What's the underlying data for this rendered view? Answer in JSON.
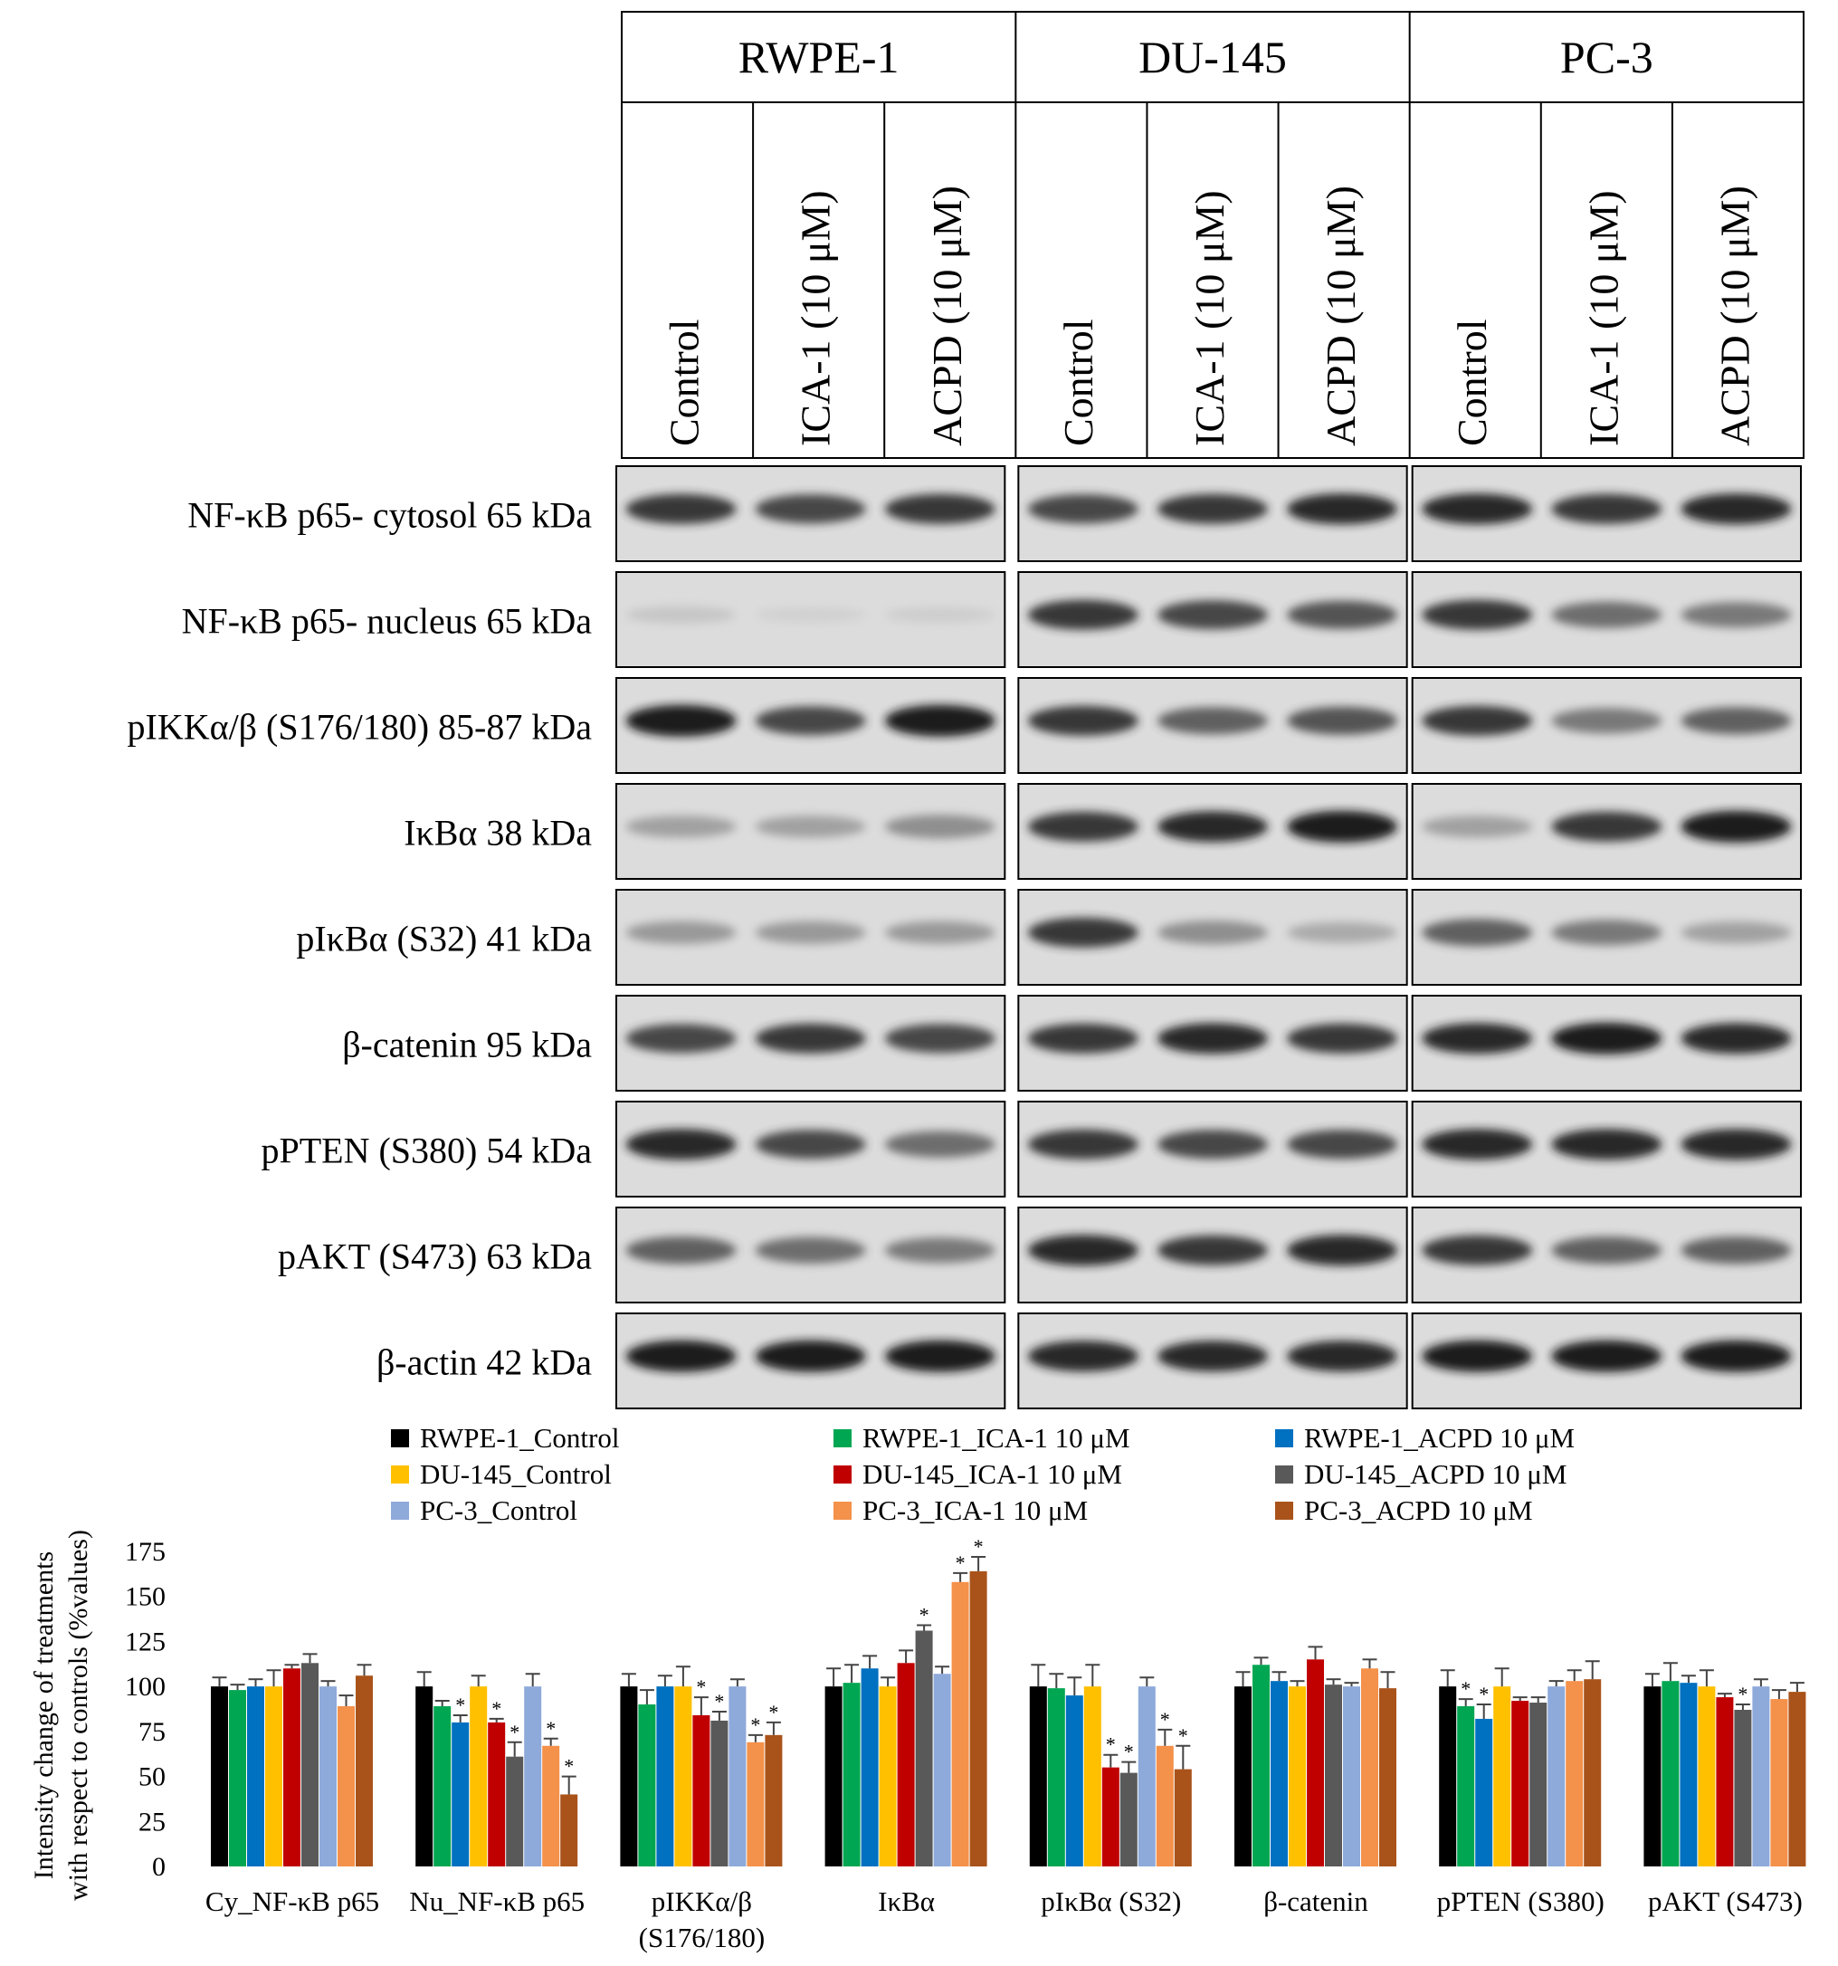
{
  "blot": {
    "cell_lines": [
      "RWPE-1",
      "DU-145",
      "PC-3"
    ],
    "treatments": [
      "Control",
      "ICA-1 (10 μM)",
      "ACPD (10 μM)"
    ],
    "rows": [
      {
        "label": "NF-κB p65- cytosol 65 kDa",
        "intensity": [
          [
            0.85,
            0.8,
            0.85
          ],
          [
            0.8,
            0.85,
            0.9
          ],
          [
            0.9,
            0.85,
            0.9
          ]
        ]
      },
      {
        "label": "NF-κB p65- nucleus 65 kDa",
        "intensity": [
          [
            0.15,
            0.05,
            0.08
          ],
          [
            0.85,
            0.8,
            0.75
          ],
          [
            0.85,
            0.65,
            0.6
          ]
        ]
      },
      {
        "label": "pIKKα/β (S176/180) 85-87 kDa",
        "intensity": [
          [
            0.95,
            0.8,
            0.95
          ],
          [
            0.85,
            0.7,
            0.75
          ],
          [
            0.85,
            0.6,
            0.7
          ]
        ]
      },
      {
        "label": "IκBα 38 kDa",
        "intensity": [
          [
            0.4,
            0.4,
            0.5
          ],
          [
            0.85,
            0.9,
            0.95
          ],
          [
            0.4,
            0.85,
            0.95
          ]
        ]
      },
      {
        "label": "pIκBα (S32) 41 kDa",
        "intensity": [
          [
            0.45,
            0.45,
            0.45
          ],
          [
            0.85,
            0.5,
            0.35
          ],
          [
            0.7,
            0.6,
            0.4
          ]
        ]
      },
      {
        "label": "β-catenin 95 kDa",
        "intensity": [
          [
            0.8,
            0.85,
            0.8
          ],
          [
            0.85,
            0.9,
            0.85
          ],
          [
            0.9,
            0.95,
            0.9
          ]
        ]
      },
      {
        "label": "pPTEN (S380) 54 kDa",
        "intensity": [
          [
            0.9,
            0.8,
            0.65
          ],
          [
            0.85,
            0.8,
            0.8
          ],
          [
            0.9,
            0.9,
            0.9
          ]
        ]
      },
      {
        "label": "pAKT (S473) 63 kDa",
        "intensity": [
          [
            0.7,
            0.65,
            0.6
          ],
          [
            0.9,
            0.85,
            0.9
          ],
          [
            0.85,
            0.7,
            0.7
          ]
        ]
      },
      {
        "label": "β-actin 42 kDa",
        "intensity": [
          [
            0.95,
            0.95,
            0.95
          ],
          [
            0.9,
            0.9,
            0.9
          ],
          [
            0.95,
            0.95,
            0.95
          ]
        ]
      }
    ]
  },
  "chart_data": {
    "type": "bar",
    "title": "",
    "xlabel": "",
    "ylabel": "Intensity change of treatments with respect to controls (%values)",
    "ylim": [
      0,
      175
    ],
    "yticks": [
      "0",
      "25",
      "50",
      "75",
      "100",
      "125",
      "150",
      "175"
    ],
    "grid": false,
    "legend_position": "top",
    "categories": [
      "Cy_NF-κB p65",
      "Nu_NF-κB p65",
      "pIKKα/β (S176/180)",
      "IκBα",
      "pIκBα (S32)",
      "β-catenin",
      "pPTEN (S380)",
      "pAKT (S473)"
    ],
    "category_label_lines": [
      [
        "Cy_NF-κB p65"
      ],
      [
        "Nu_NF-κB p65"
      ],
      [
        "pIKKα/β",
        "(S176/180)"
      ],
      [
        "IκBα"
      ],
      [
        "pIκBα (S32)"
      ],
      [
        "β-catenin"
      ],
      [
        "pPTEN (S380)"
      ],
      [
        "pAKT (S473)"
      ]
    ],
    "series": [
      {
        "name": "RWPE-1_Control",
        "color": "#000000",
        "values": [
          100,
          100,
          100,
          100,
          100,
          100,
          100,
          100
        ],
        "errors": [
          5,
          8,
          7,
          10,
          12,
          8,
          9,
          7
        ],
        "significant": [
          false,
          false,
          false,
          false,
          false,
          false,
          false,
          false
        ]
      },
      {
        "name": "RWPE-1_ICA-1 10 μM",
        "color": "#00a651",
        "values": [
          98,
          89,
          90,
          102,
          99,
          112,
          89,
          103
        ],
        "errors": [
          3,
          3,
          8,
          10,
          8,
          4,
          4,
          10
        ],
        "significant": [
          false,
          false,
          false,
          false,
          false,
          false,
          true,
          false
        ]
      },
      {
        "name": "RWPE-1_ACPD 10 μM",
        "color": "#0070c0",
        "values": [
          100,
          80,
          100,
          110,
          95,
          103,
          82,
          102
        ],
        "errors": [
          4,
          4,
          6,
          7,
          10,
          5,
          8,
          4
        ],
        "significant": [
          false,
          true,
          false,
          false,
          false,
          false,
          true,
          false
        ]
      },
      {
        "name": "DU-145_Control",
        "color": "#ffc000",
        "values": [
          100,
          100,
          100,
          100,
          100,
          100,
          100,
          100
        ],
        "errors": [
          9,
          6,
          11,
          5,
          12,
          3,
          10,
          9
        ],
        "significant": [
          false,
          false,
          false,
          false,
          false,
          false,
          false,
          false
        ]
      },
      {
        "name": "DU-145_ICA-1 10 μM",
        "color": "#c00000",
        "values": [
          110,
          80,
          84,
          113,
          55,
          115,
          92,
          94
        ],
        "errors": [
          2,
          2,
          10,
          7,
          7,
          7,
          2,
          2
        ],
        "significant": [
          false,
          true,
          true,
          false,
          true,
          false,
          false,
          false
        ]
      },
      {
        "name": "DU-145_ACPD 10 μM",
        "color": "#595959",
        "values": [
          113,
          61,
          81,
          131,
          52,
          101,
          91,
          87
        ],
        "errors": [
          5,
          8,
          5,
          3,
          6,
          3,
          3,
          3
        ],
        "significant": [
          false,
          true,
          true,
          true,
          true,
          false,
          false,
          true
        ]
      },
      {
        "name": "PC-3_Control",
        "color": "#8eaadb",
        "values": [
          100,
          100,
          100,
          107,
          100,
          100,
          100,
          100
        ],
        "errors": [
          3,
          7,
          4,
          4,
          5,
          2,
          3,
          4
        ],
        "significant": [
          false,
          false,
          false,
          false,
          false,
          false,
          false,
          false
        ]
      },
      {
        "name": "PC-3_ICA-1 10 μM",
        "color": "#f4914a",
        "values": [
          89,
          67,
          69,
          158,
          67,
          110,
          103,
          93
        ],
        "errors": [
          6,
          4,
          4,
          5,
          9,
          5,
          6,
          5
        ],
        "significant": [
          false,
          true,
          true,
          true,
          true,
          false,
          false,
          false
        ]
      },
      {
        "name": "PC-3_ACPD 10 μM",
        "color": "#a9531a",
        "values": [
          106,
          40,
          73,
          164,
          54,
          99,
          104,
          97
        ],
        "errors": [
          6,
          10,
          7,
          8,
          13,
          9,
          10,
          5
        ],
        "significant": [
          false,
          true,
          true,
          true,
          true,
          false,
          false,
          false
        ]
      }
    ],
    "significance_mark": "*"
  }
}
